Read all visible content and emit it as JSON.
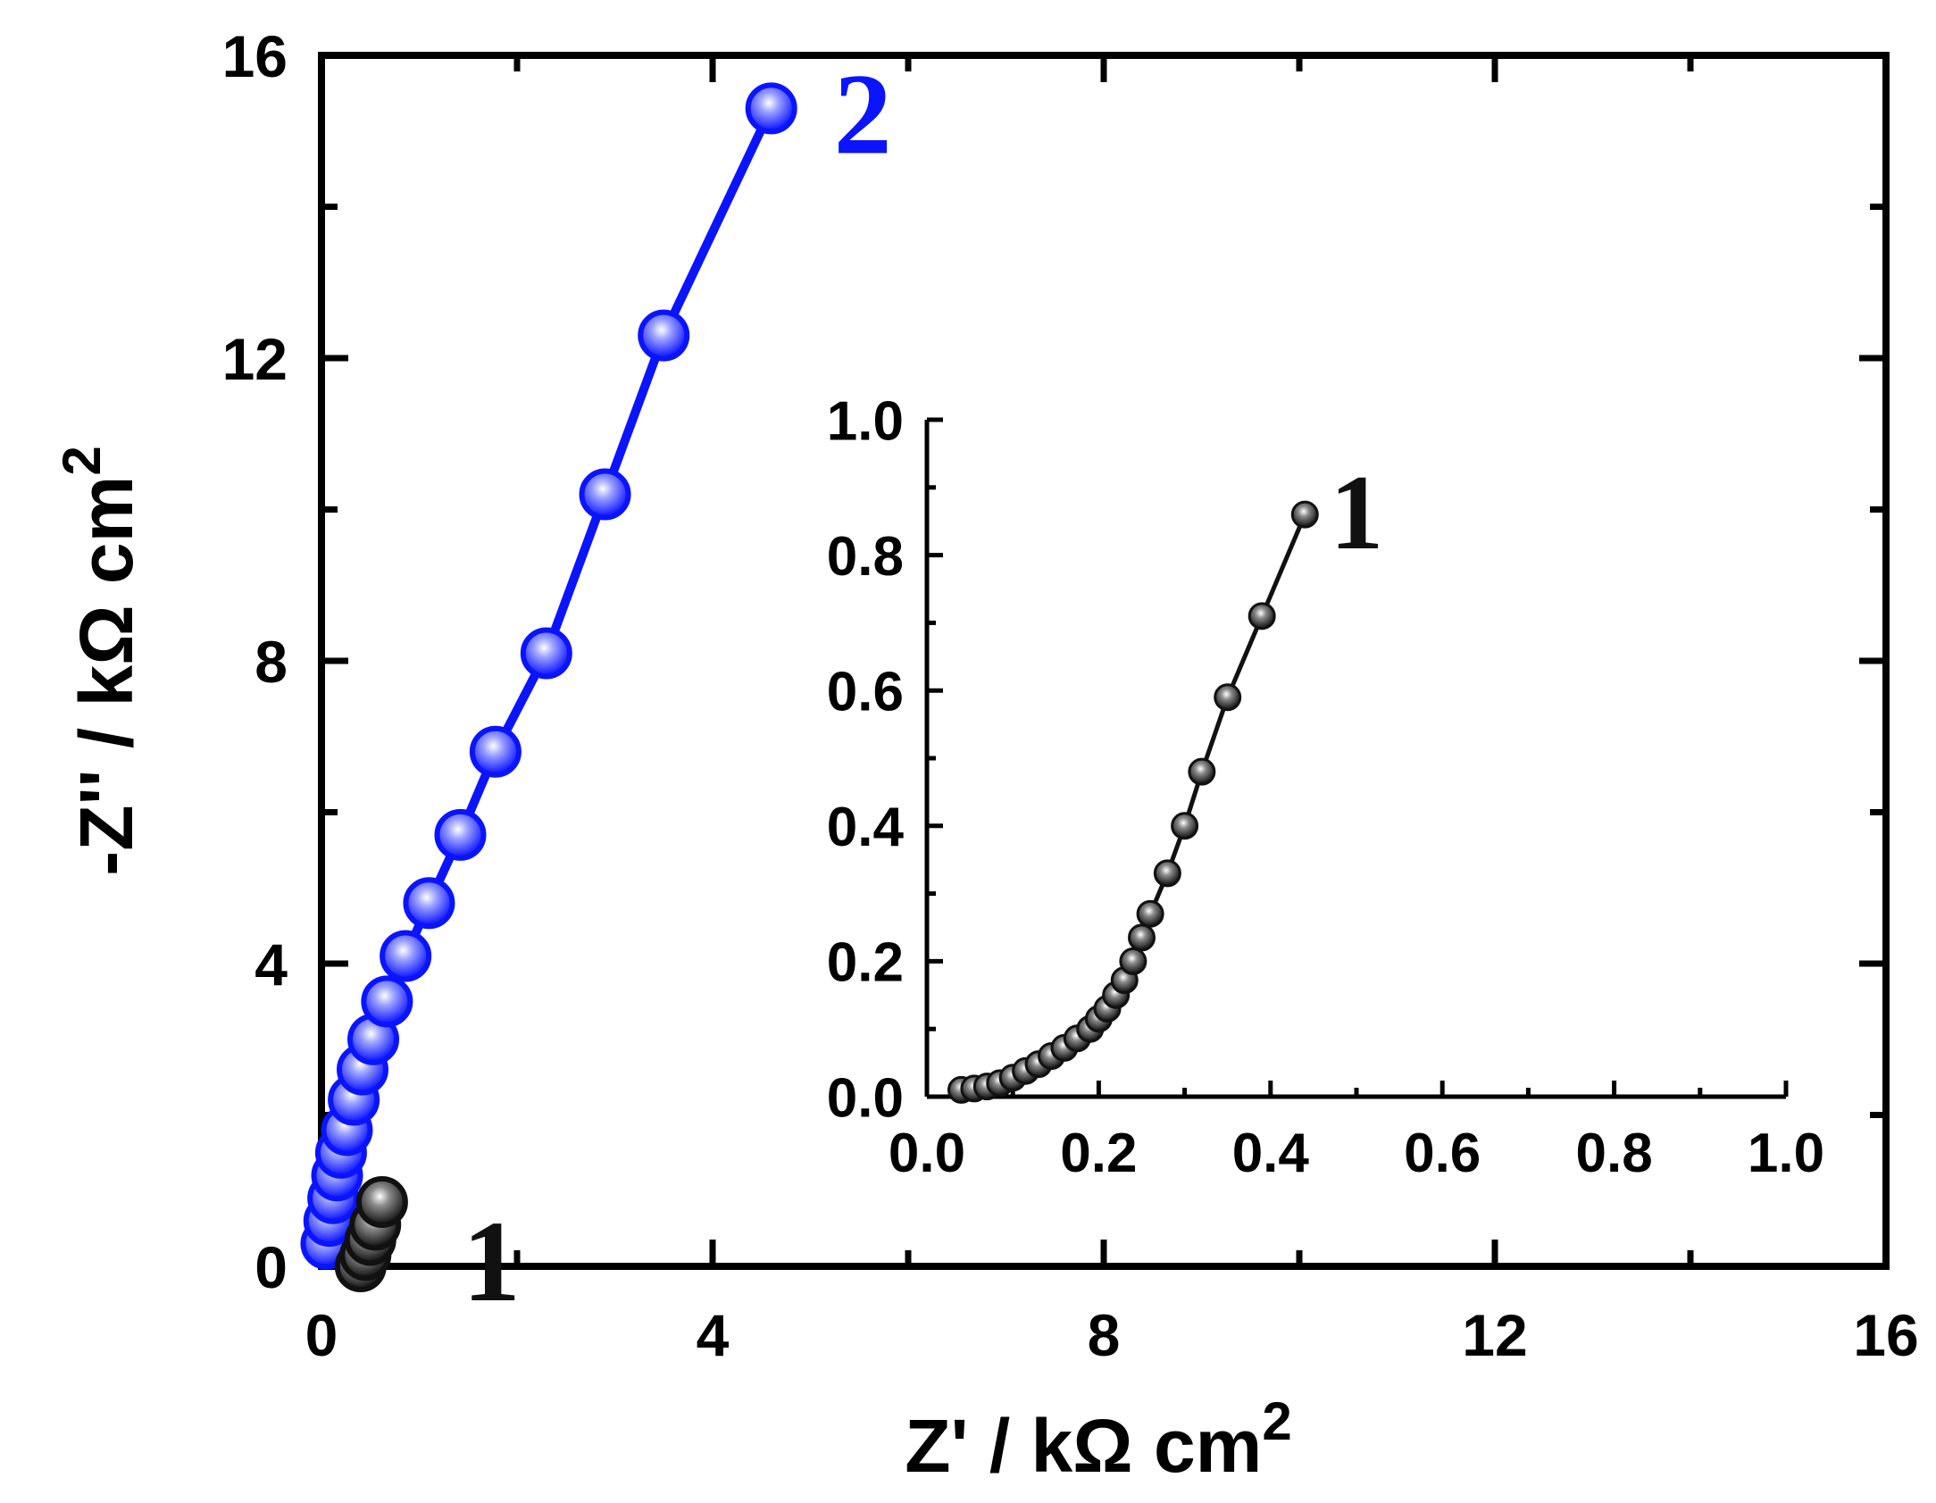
{
  "chart_data": [
    {
      "name": "main",
      "type": "line",
      "xlabel": "Z' /  kΩ cm",
      "xlabel_sup": "2",
      "ylabel": "-Z'' / kΩ cm",
      "ylabel_sup": "2",
      "xlim": [
        0,
        16
      ],
      "ylim": [
        0,
        16
      ],
      "xticks": [
        "0",
        "4",
        "8",
        "12",
        "16"
      ],
      "yticks": [
        "0",
        "4",
        "8",
        "12",
        "16"
      ],
      "series": [
        {
          "name": "2",
          "label": "2",
          "color": "#0a14ff",
          "x": [
            0.05,
            0.08,
            0.12,
            0.16,
            0.2,
            0.26,
            0.33,
            0.42,
            0.53,
            0.67,
            0.86,
            1.1,
            1.42,
            1.78,
            2.3,
            2.9,
            3.5,
            4.6
          ],
          "y": [
            0.3,
            0.6,
            0.9,
            1.2,
            1.5,
            1.8,
            2.2,
            2.6,
            3.0,
            3.5,
            4.1,
            4.8,
            5.7,
            6.8,
            8.1,
            10.2,
            12.3,
            15.3
          ]
        },
        {
          "name": "1",
          "label": "1",
          "color": "#111111",
          "x": [
            0.4,
            0.45,
            0.5,
            0.55,
            0.62
          ],
          "y": [
            0.0,
            0.15,
            0.35,
            0.55,
            0.85
          ]
        }
      ]
    },
    {
      "name": "inset",
      "type": "line",
      "xlim": [
        0,
        1.0
      ],
      "ylim": [
        0,
        1.0
      ],
      "xticks": [
        "0.0",
        "0.2",
        "0.4",
        "0.6",
        "0.8",
        "1.0"
      ],
      "yticks": [
        "0.0",
        "0.2",
        "0.4",
        "0.6",
        "0.8",
        "1.0"
      ],
      "series": [
        {
          "name": "1",
          "label": "1",
          "color": "#111111",
          "x": [
            0.04,
            0.055,
            0.07,
            0.085,
            0.1,
            0.115,
            0.13,
            0.145,
            0.16,
            0.175,
            0.19,
            0.2,
            0.21,
            0.22,
            0.23,
            0.24,
            0.25,
            0.26,
            0.28,
            0.3,
            0.32,
            0.35,
            0.39,
            0.44
          ],
          "y": [
            0.01,
            0.012,
            0.015,
            0.02,
            0.028,
            0.038,
            0.048,
            0.06,
            0.072,
            0.086,
            0.1,
            0.115,
            0.13,
            0.15,
            0.172,
            0.2,
            0.235,
            0.27,
            0.33,
            0.4,
            0.48,
            0.59,
            0.71,
            0.86
          ]
        }
      ]
    }
  ]
}
